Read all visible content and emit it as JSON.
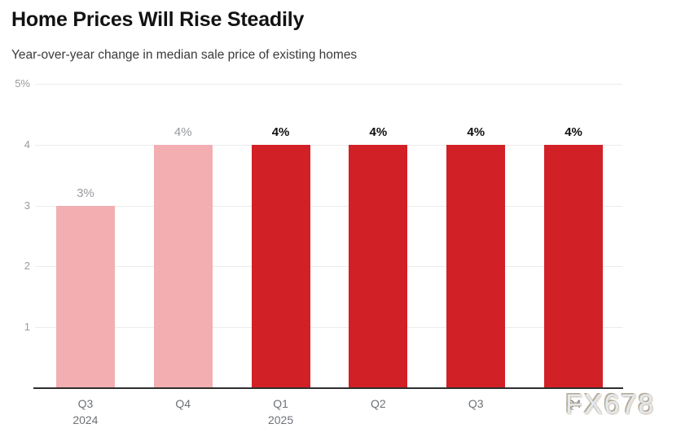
{
  "header": {
    "title": "Home Prices Will Rise Steadily",
    "subtitle": "Year-over-year change in median sale price of existing homes"
  },
  "watermark": "FX678",
  "colors": {
    "bar_pink": "#f2aeb1",
    "bar_red": "#d22027",
    "gridline": "#ececec",
    "axis_line": "#2e2e2e",
    "y_tick_label": "#9b9b9b",
    "x_tick_label": "#6e7277",
    "value_label_muted": "#97999d",
    "value_label_strong": "#111111"
  },
  "chart_data": {
    "type": "bar",
    "title": "Home Prices Will Rise Steadily",
    "subtitle": "Year-over-year change in median sale price of existing homes",
    "categories": [
      "Q3",
      "Q4",
      "Q1",
      "Q2",
      "Q3",
      "Q4"
    ],
    "category_years": [
      "2024",
      "",
      "2025",
      "",
      "",
      ""
    ],
    "values": [
      3,
      4,
      4,
      4,
      4,
      4
    ],
    "value_labels": [
      "3%",
      "4%",
      "4%",
      "4%",
      "4%",
      "4%"
    ],
    "bar_colors": [
      "pink",
      "pink",
      "red",
      "red",
      "red",
      "red"
    ],
    "value_label_styles": [
      "muted",
      "muted",
      "strong",
      "strong",
      "strong",
      "strong"
    ],
    "xlabel": "",
    "ylabel": "",
    "ylim": [
      0,
      5
    ],
    "yticks": [
      {
        "value": 1,
        "label": "1"
      },
      {
        "value": 2,
        "label": "2"
      },
      {
        "value": 3,
        "label": "3"
      },
      {
        "value": 4,
        "label": "4"
      },
      {
        "value": 5,
        "label": "5%"
      }
    ],
    "grid": true,
    "legend": false
  }
}
